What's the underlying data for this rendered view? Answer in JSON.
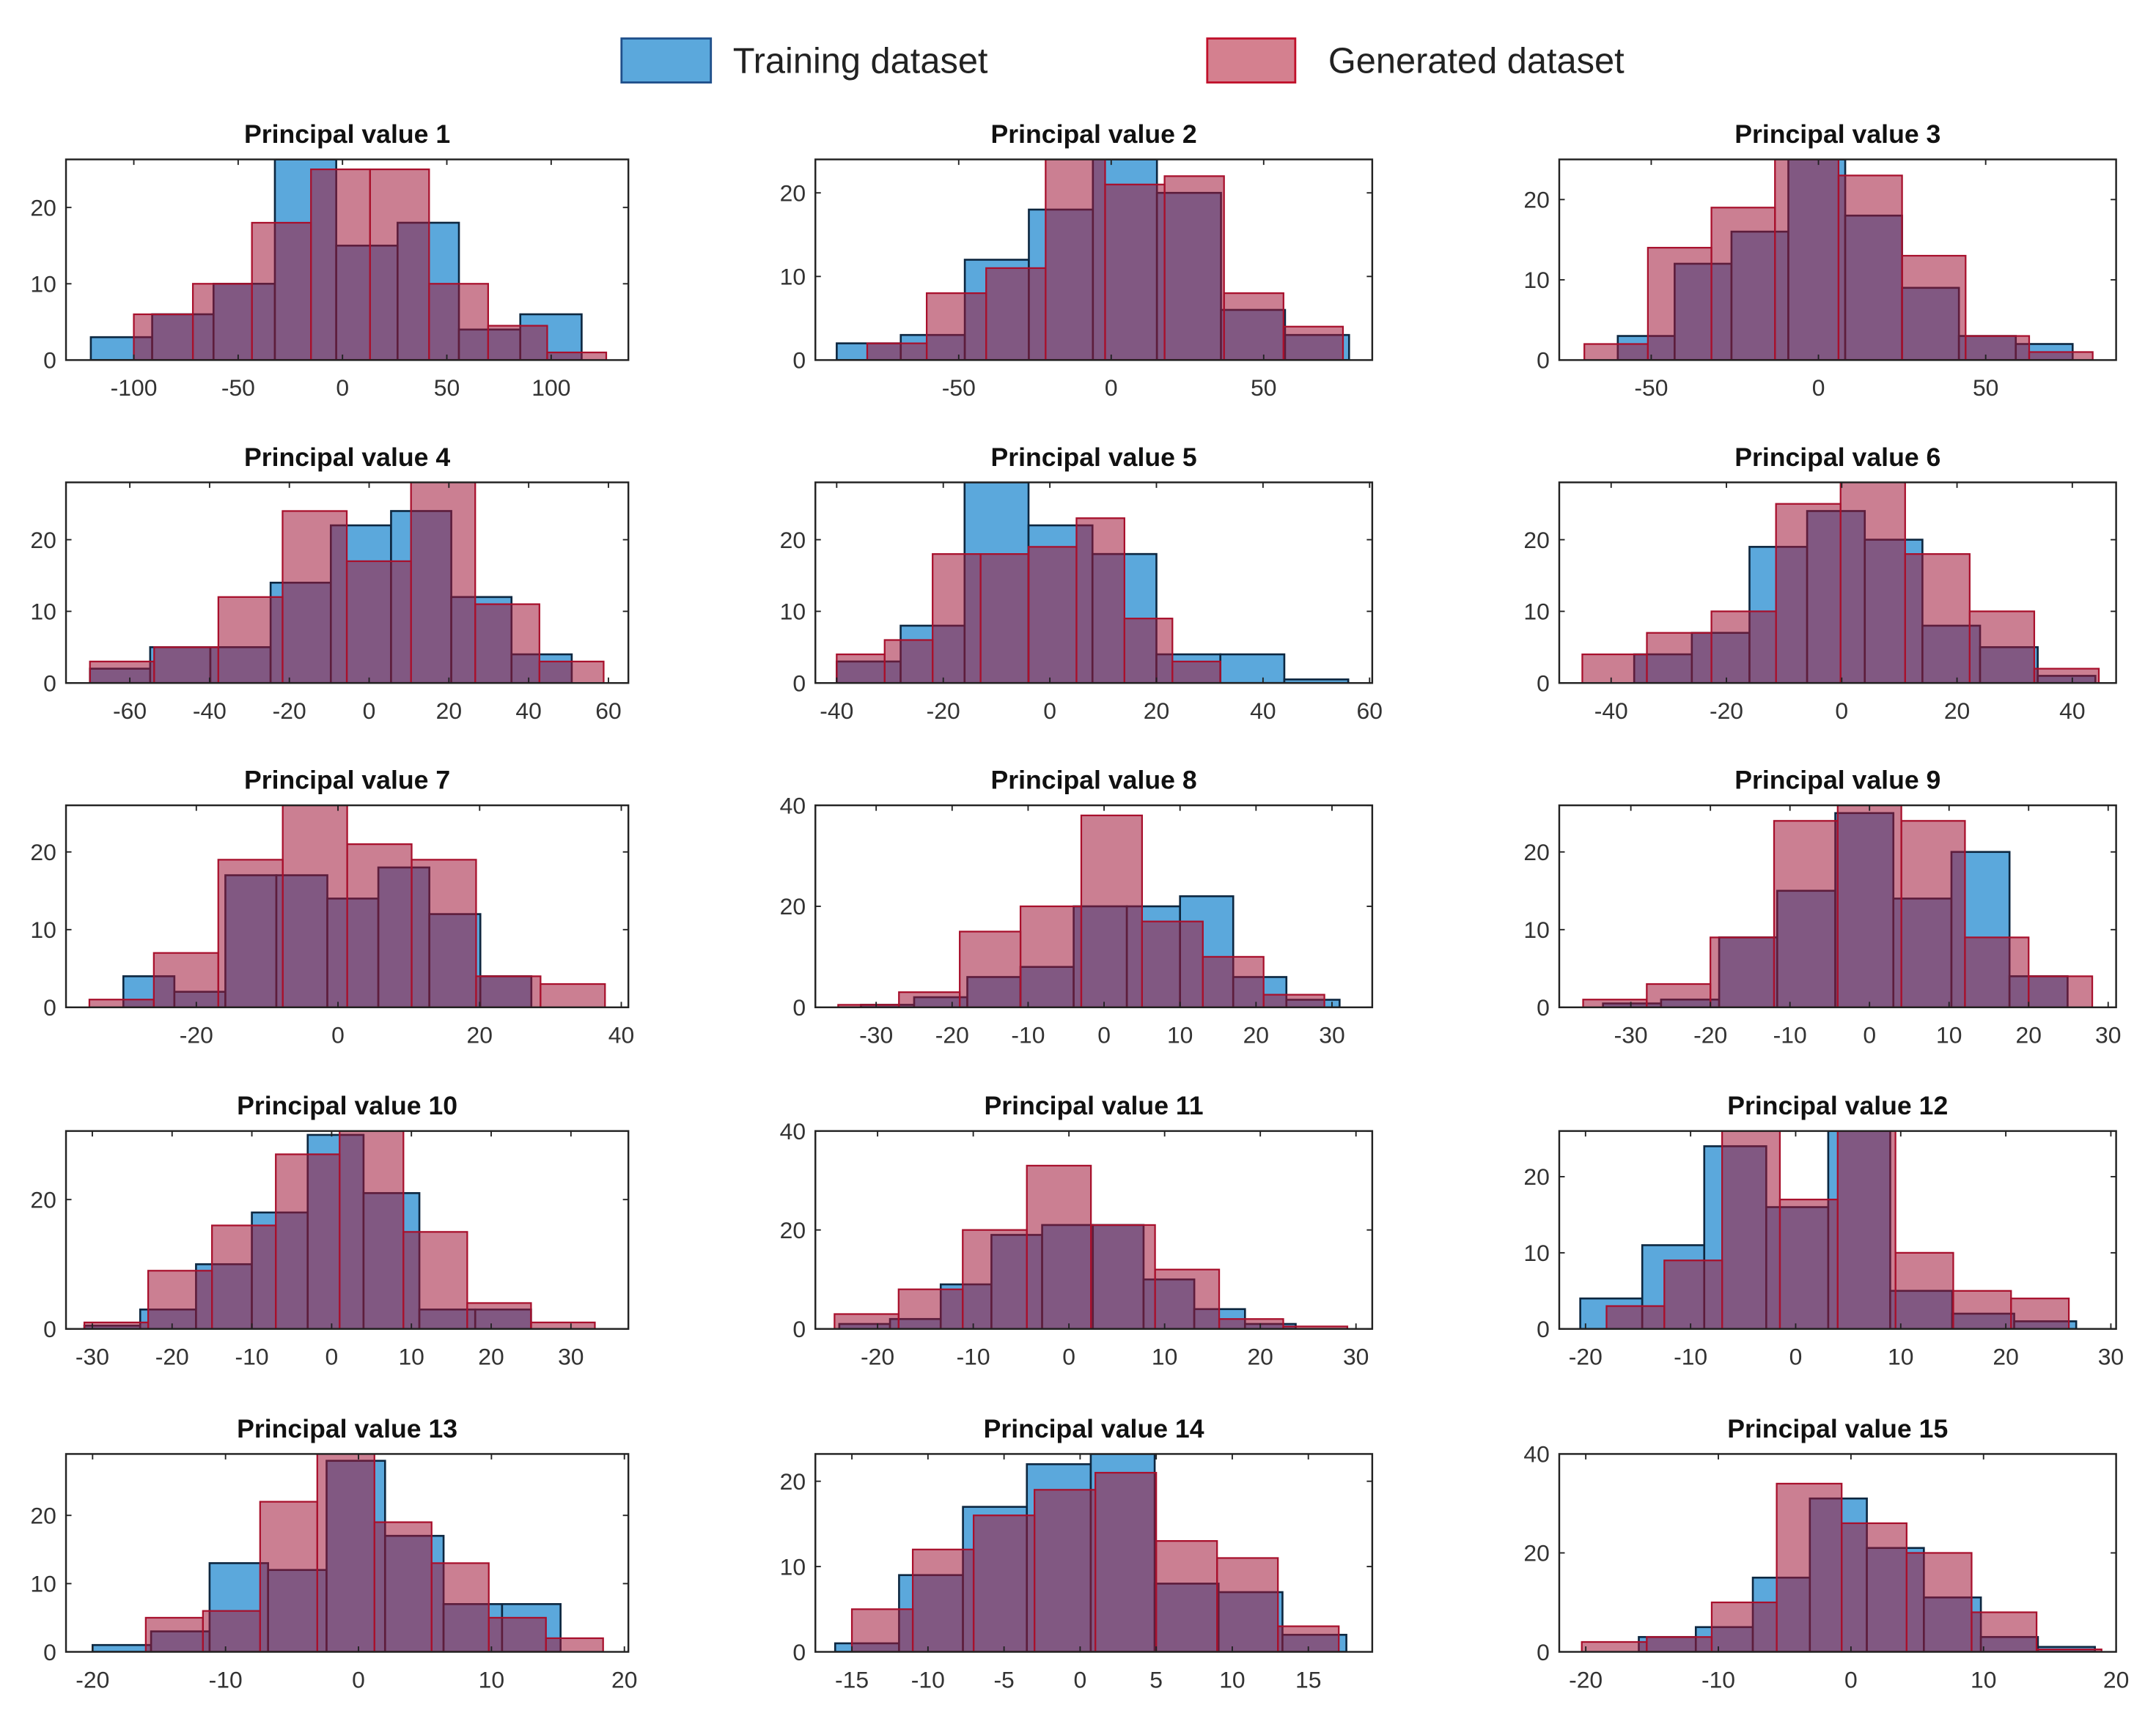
{
  "legend": [
    {
      "label": "Training dataset",
      "fill": "#5ba8dc",
      "stroke": "#1f4f8a"
    },
    {
      "label": "Generated dataset",
      "fill": "#a01538",
      "stroke": "#c0102a"
    }
  ],
  "colors": {
    "training_fill": "#5ba8dc",
    "training_stroke": "#0d2740",
    "generated_fill": "#a01538",
    "generated_stroke": "#a8102c"
  },
  "chart_data": [
    {
      "type": "bar",
      "title": "Principal value 1",
      "xlim": [
        -132.5,
        137
      ],
      "ylim": [
        0,
        26.3
      ],
      "xticks": [
        -100,
        -50,
        0,
        50,
        100
      ],
      "yticks": [
        0,
        10,
        20
      ],
      "series": [
        {
          "name": "Training dataset",
          "bin_start": -120.6,
          "bin_width": 29.4,
          "counts": [
            3,
            6,
            10,
            27,
            15,
            18,
            4,
            6
          ]
        },
        {
          "name": "Generated dataset",
          "bin_start": -100,
          "bin_width": 28.3,
          "counts": [
            6,
            10,
            18,
            25,
            25,
            10,
            4.5,
            1
          ]
        }
      ]
    },
    {
      "type": "bar",
      "title": "Principal value 2",
      "xlim": [
        -97,
        85.6
      ],
      "ylim": [
        0,
        24
      ],
      "xticks": [
        -50,
        0,
        50
      ],
      "yticks": [
        0,
        10,
        20
      ],
      "series": [
        {
          "name": "Training dataset",
          "bin_start": -90,
          "bin_width": 21,
          "counts": [
            2,
            3,
            12,
            18,
            25,
            20,
            6,
            3
          ]
        },
        {
          "name": "Generated dataset",
          "bin_start": -80,
          "bin_width": 19.5,
          "counts": [
            2,
            8,
            11,
            25,
            21,
            22,
            8,
            4
          ]
        }
      ]
    },
    {
      "type": "bar",
      "title": "Principal value 3",
      "xlim": [
        -77.5,
        89
      ],
      "ylim": [
        0,
        25
      ],
      "xticks": [
        -50,
        0,
        50
      ],
      "yticks": [
        0,
        10,
        20
      ],
      "series": [
        {
          "name": "Training dataset",
          "bin_start": -60,
          "bin_width": 17,
          "counts": [
            3,
            12,
            16,
            26,
            18,
            9,
            3,
            2
          ]
        },
        {
          "name": "Generated dataset",
          "bin_start": -70,
          "bin_width": 19,
          "counts": [
            2,
            14,
            19,
            26,
            23,
            13,
            3,
            1
          ]
        }
      ]
    },
    {
      "type": "bar",
      "title": "Principal value 4",
      "xlim": [
        -76,
        65
      ],
      "ylim": [
        0,
        28
      ],
      "xticks": [
        -60,
        -40,
        -20,
        0,
        20,
        40,
        60
      ],
      "yticks": [
        0,
        10,
        20
      ],
      "series": [
        {
          "name": "Training dataset",
          "bin_start": -70,
          "bin_width": 15.1,
          "counts": [
            2,
            5,
            5,
            14,
            22,
            24,
            12,
            4
          ]
        },
        {
          "name": "Generated dataset",
          "bin_start": -70,
          "bin_width": 16.1,
          "counts": [
            3,
            5,
            12,
            24,
            17,
            29,
            11,
            3
          ]
        }
      ]
    },
    {
      "type": "bar",
      "title": "Principal value 5",
      "xlim": [
        -44,
        60.5
      ],
      "ylim": [
        0,
        28
      ],
      "xticks": [
        -40,
        -20,
        0,
        20,
        40,
        60
      ],
      "yticks": [
        0,
        10,
        20
      ],
      "series": [
        {
          "name": "Training dataset",
          "bin_start": -40,
          "bin_width": 12,
          "counts": [
            3,
            8,
            28,
            22,
            18,
            4,
            4,
            0.5
          ]
        },
        {
          "name": "Generated dataset",
          "bin_start": -40,
          "bin_width": 9,
          "counts": [
            4,
            6,
            18,
            18,
            19,
            23,
            9,
            3
          ]
        }
      ]
    },
    {
      "type": "bar",
      "title": "Principal value 6",
      "xlim": [
        -49,
        47.6
      ],
      "ylim": [
        0,
        28
      ],
      "xticks": [
        -40,
        -20,
        0,
        20,
        40
      ],
      "yticks": [
        0,
        10,
        20
      ],
      "series": [
        {
          "name": "Training dataset",
          "bin_start": -36,
          "bin_width": 10,
          "counts": [
            4,
            7,
            19,
            24,
            20,
            8,
            5,
            1
          ]
        },
        {
          "name": "Generated dataset",
          "bin_start": -45,
          "bin_width": 11.2,
          "counts": [
            4,
            7,
            10,
            25,
            28,
            18,
            10,
            2
          ]
        }
      ]
    },
    {
      "type": "bar",
      "title": "Principal value 7",
      "xlim": [
        -38.4,
        41
      ],
      "ylim": [
        0,
        26
      ],
      "xticks": [
        -20,
        0,
        20,
        40
      ],
      "yticks": [
        0,
        10,
        20
      ],
      "series": [
        {
          "name": "Training dataset",
          "bin_start": -30.3,
          "bin_width": 7.2,
          "counts": [
            4,
            2,
            17,
            17,
            14,
            18,
            12,
            4
          ]
        },
        {
          "name": "Generated dataset",
          "bin_start": -35.1,
          "bin_width": 9.1,
          "counts": [
            1,
            7,
            19,
            26,
            21,
            19,
            4,
            3
          ]
        }
      ]
    },
    {
      "type": "bar",
      "title": "Principal value 8",
      "xlim": [
        -38,
        35.3
      ],
      "ylim": [
        0,
        40
      ],
      "xticks": [
        -30,
        -20,
        -10,
        0,
        10,
        20,
        30
      ],
      "yticks": [
        0,
        20,
        40
      ],
      "series": [
        {
          "name": "Training dataset",
          "bin_start": -32,
          "bin_width": 7,
          "counts": [
            0.5,
            2,
            6,
            8,
            20,
            20,
            22,
            6,
            1.5
          ]
        },
        {
          "name": "Generated dataset",
          "bin_start": -35,
          "bin_width": 8,
          "counts": [
            0.5,
            3,
            15,
            20,
            38,
            17,
            10,
            2.5
          ]
        }
      ]
    },
    {
      "type": "bar",
      "title": "Principal value 9",
      "xlim": [
        -39,
        31
      ],
      "ylim": [
        0,
        26
      ],
      "xticks": [
        -30,
        -20,
        -10,
        0,
        10,
        20,
        30
      ],
      "yticks": [
        0,
        10,
        20
      ],
      "series": [
        {
          "name": "Training dataset",
          "bin_start": -33.5,
          "bin_width": 7.3,
          "counts": [
            0.5,
            1,
            9,
            15,
            25,
            14,
            20,
            4
          ]
        },
        {
          "name": "Generated dataset",
          "bin_start": -36,
          "bin_width": 8,
          "counts": [
            1,
            3,
            9,
            24,
            27,
            24,
            9,
            4
          ]
        }
      ]
    },
    {
      "type": "bar",
      "title": "Principal value 10",
      "xlim": [
        -33.3,
        37.2
      ],
      "ylim": [
        0,
        30.6
      ],
      "xticks": [
        -30,
        -20,
        -10,
        0,
        10,
        20,
        30
      ],
      "yticks": [
        0,
        20
      ],
      "series": [
        {
          "name": "Training dataset",
          "bin_start": -31,
          "bin_width": 7,
          "counts": [
            0.5,
            3,
            10,
            18,
            30,
            21,
            3,
            3
          ]
        },
        {
          "name": "Generated dataset",
          "bin_start": -31,
          "bin_width": 8,
          "counts": [
            1,
            9,
            16,
            27,
            31,
            15,
            4,
            1
          ]
        }
      ]
    },
    {
      "type": "bar",
      "title": "Principal value 11",
      "xlim": [
        -26.5,
        31.7
      ],
      "ylim": [
        0,
        40
      ],
      "xticks": [
        -20,
        -10,
        0,
        10,
        20,
        30
      ],
      "yticks": [
        0,
        20,
        40
      ],
      "series": [
        {
          "name": "Training dataset",
          "bin_start": -24,
          "bin_width": 5.3,
          "counts": [
            1,
            2,
            9,
            19,
            21,
            21,
            10,
            4,
            1
          ]
        },
        {
          "name": "Generated dataset",
          "bin_start": -24.5,
          "bin_width": 6.7,
          "counts": [
            3,
            8,
            20,
            33,
            21,
            12,
            2,
            0.5
          ]
        }
      ]
    },
    {
      "type": "bar",
      "title": "Principal value 12",
      "xlim": [
        -22.5,
        30.5
      ],
      "ylim": [
        0,
        26
      ],
      "xticks": [
        -20,
        -10,
        0,
        10,
        20,
        30
      ],
      "yticks": [
        0,
        10,
        20
      ],
      "series": [
        {
          "name": "Training dataset",
          "bin_start": -20.5,
          "bin_width": 5.9,
          "counts": [
            4,
            11,
            24,
            16,
            26,
            5,
            2,
            1
          ]
        },
        {
          "name": "Generated dataset",
          "bin_start": -18,
          "bin_width": 5.5,
          "counts": [
            3,
            9,
            27,
            17,
            26,
            10,
            5,
            4
          ]
        }
      ]
    },
    {
      "type": "bar",
      "title": "Principal value 13",
      "xlim": [
        -22,
        20.3
      ],
      "ylim": [
        0,
        29
      ],
      "xticks": [
        -20,
        -10,
        0,
        10,
        20
      ],
      "yticks": [
        0,
        10,
        20
      ],
      "series": [
        {
          "name": "Training dataset",
          "bin_start": -20,
          "bin_width": 4.4,
          "counts": [
            1,
            3,
            13,
            12,
            28,
            17,
            7,
            7
          ]
        },
        {
          "name": "Generated dataset",
          "bin_start": -16,
          "bin_width": 4.3,
          "counts": [
            5,
            6,
            22,
            29,
            19,
            13,
            5,
            2
          ]
        }
      ]
    },
    {
      "type": "bar",
      "title": "Principal value 14",
      "xlim": [
        -17.4,
        19.2
      ],
      "ylim": [
        0,
        23.2
      ],
      "xticks": [
        -15,
        -10,
        -5,
        0,
        5,
        10,
        15
      ],
      "yticks": [
        0,
        10,
        20
      ],
      "series": [
        {
          "name": "Training dataset",
          "bin_start": -16.1,
          "bin_width": 4.2,
          "counts": [
            1,
            9,
            17,
            22,
            24,
            8,
            7,
            2
          ]
        },
        {
          "name": "Generated dataset",
          "bin_start": -15,
          "bin_width": 4,
          "counts": [
            5,
            12,
            16,
            19,
            21,
            13,
            11,
            3
          ]
        }
      ]
    },
    {
      "type": "bar",
      "title": "Principal value 15",
      "xlim": [
        -22,
        20
      ],
      "ylim": [
        0,
        40
      ],
      "xticks": [
        -20,
        -10,
        0,
        10,
        20
      ],
      "yticks": [
        0,
        20,
        40
      ],
      "series": [
        {
          "name": "Training dataset",
          "bin_start": -16,
          "bin_width": 4.3,
          "counts": [
            3,
            5,
            15,
            31,
            21,
            11,
            3,
            1
          ]
        },
        {
          "name": "Generated dataset",
          "bin_start": -20.3,
          "bin_width": 4.9,
          "counts": [
            2,
            3,
            10,
            34,
            26,
            20,
            8,
            0.5
          ]
        }
      ]
    }
  ]
}
